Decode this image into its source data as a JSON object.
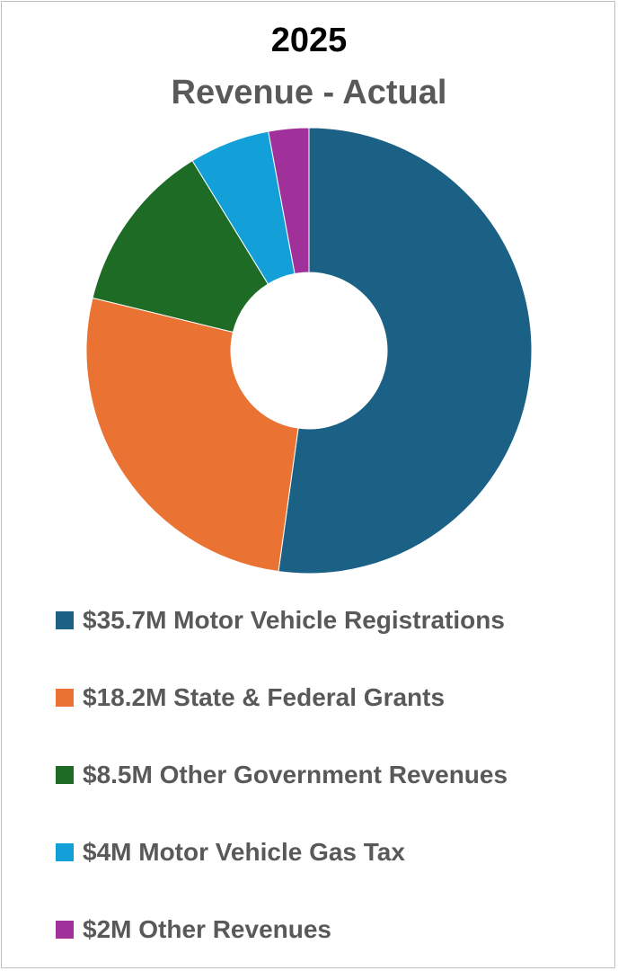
{
  "chart_data": {
    "type": "pie",
    "donut": true,
    "title": "2025",
    "subtitle": "Revenue - Actual",
    "unit": "$M",
    "legend_position": "bottom",
    "slices": [
      {
        "label": "$35.7M Motor Vehicle Registrations",
        "value": 35.7,
        "color": "#1a6185"
      },
      {
        "label": "$18.2M State & Federal Grants",
        "value": 18.2,
        "color": "#ea7333"
      },
      {
        "label": "$8.5M Other Government Revenues",
        "value": 8.5,
        "color": "#1e6b25"
      },
      {
        "label": "$4M Motor Vehicle Gas Tax",
        "value": 4,
        "color": "#13a0d8"
      },
      {
        "label": "$2M Other Revenues",
        "value": 2,
        "color": "#a0309a"
      }
    ]
  }
}
